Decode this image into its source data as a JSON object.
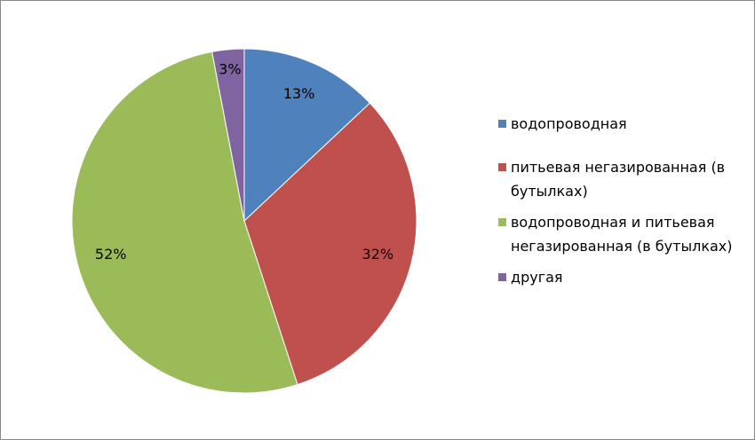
{
  "chart_data": {
    "type": "pie",
    "categories": [
      "водопроводная",
      "питьевая негазированная (в бутылках)",
      "водопроводная и питьевая негазированная (в бутылках)",
      "другая"
    ],
    "values": [
      13,
      32,
      52,
      3
    ],
    "value_labels": [
      "13%",
      "32%",
      "52%",
      "3%"
    ],
    "colors": [
      "#4f81bd",
      "#c0504d",
      "#9bbb59",
      "#8064a2"
    ],
    "legend": "right"
  }
}
